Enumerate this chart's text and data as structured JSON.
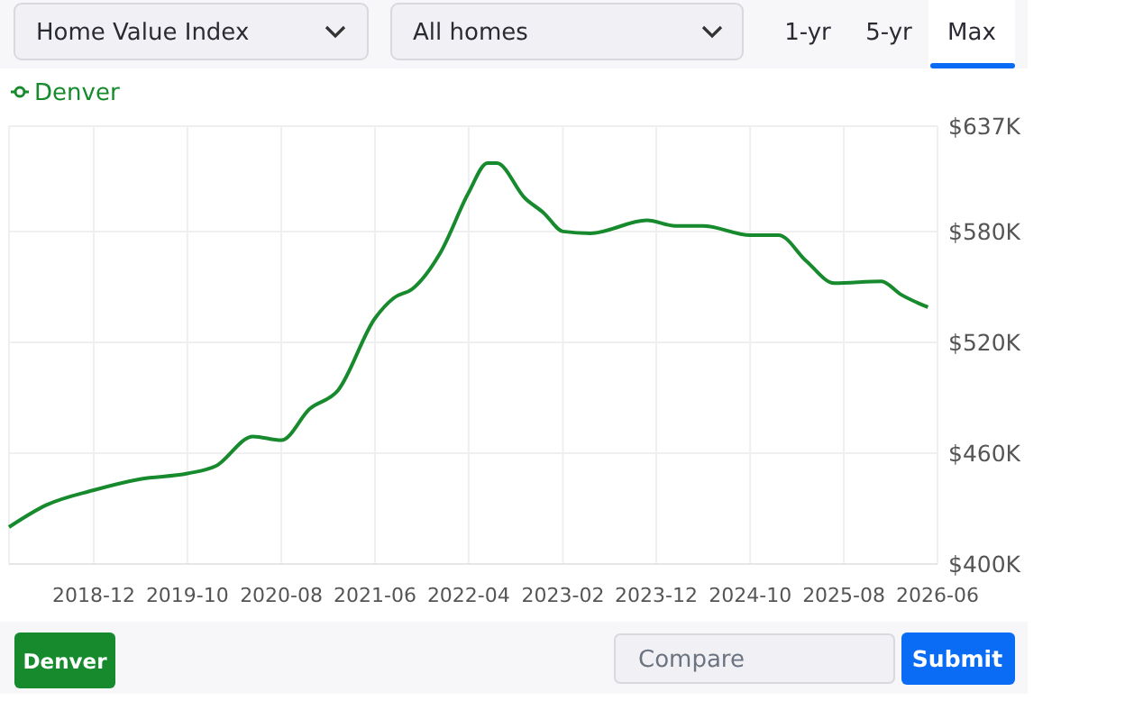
{
  "chart_data": {
    "type": "line",
    "x": [
      "2018-03",
      "2018-07",
      "2018-12",
      "2019-05",
      "2019-10",
      "2020-01",
      "2020-05",
      "2020-08",
      "2020-11",
      "2021-02",
      "2021-06",
      "2021-08",
      "2021-10",
      "2022-01",
      "2022-04",
      "2022-06",
      "2022-07",
      "2022-10",
      "2022-12",
      "2023-02",
      "2023-05",
      "2023-11",
      "2024-02",
      "2024-05",
      "2024-10",
      "2025-01",
      "2025-04",
      "2025-07",
      "2025-12",
      "2026-02",
      "2026-05"
    ],
    "series": [
      {
        "name": "Denver",
        "color": "#178a2e",
        "values": [
          420,
          432,
          440,
          446,
          449,
          453,
          469,
          467,
          484,
          494,
          533,
          544,
          549,
          569,
          601,
          617,
          617,
          598,
          590,
          580,
          579,
          586,
          583,
          583,
          578,
          578,
          564,
          552,
          553,
          546,
          539
        ]
      }
    ],
    "xlim": [
      "2018-03",
      "2026-06"
    ],
    "xticks": [
      "2018-12",
      "2019-10",
      "2020-08",
      "2021-06",
      "2022-04",
      "2023-02",
      "2023-12",
      "2024-10",
      "2025-08",
      "2026-06"
    ],
    "ylim": [
      400,
      637
    ],
    "yticks": [
      {
        "value": 400,
        "label": "$400K"
      },
      {
        "value": 460,
        "label": "$460K"
      },
      {
        "value": 520,
        "label": "$520K"
      },
      {
        "value": 580,
        "label": "$580K"
      },
      {
        "value": 637,
        "label": "$637K"
      }
    ],
    "grid": true,
    "legend": "top left",
    "annotations": [
      "Home Value Index",
      "All homes",
      "1-yr",
      "5-yr",
      "Max",
      "Denver",
      "Compare",
      "Submit"
    ]
  }
}
